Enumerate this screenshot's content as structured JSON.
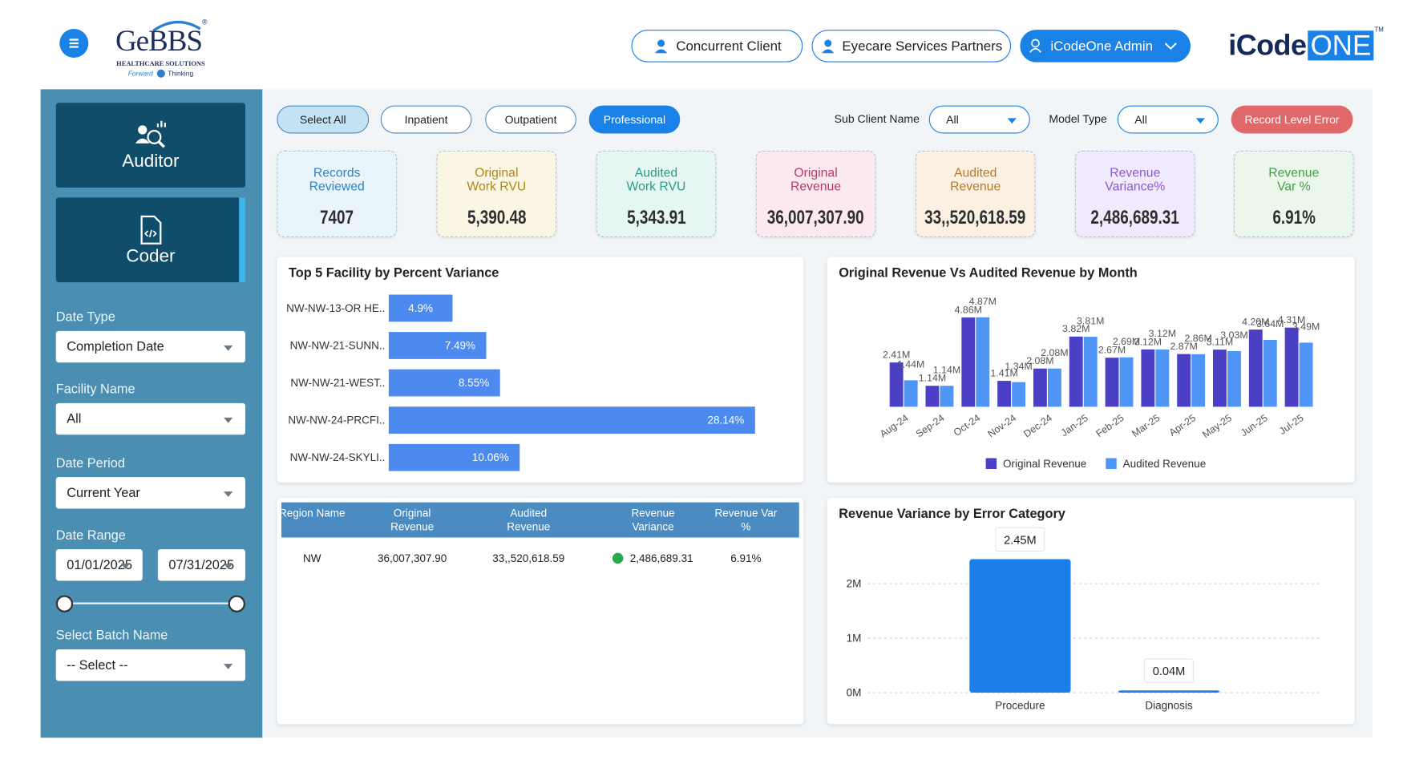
{
  "header": {
    "logo": {
      "name": "GeBBS",
      "mark": "®",
      "tagline": "HEALTHCARE SOLUTIONS",
      "motto_1": "Forward",
      "motto_2": "Thinking"
    },
    "buttons": [
      "Concurrent Client",
      "Eyecare Services Partners",
      "iCodeOne Admin"
    ],
    "brand": {
      "part_1": "iCode",
      "part_2": "ONE",
      "mark": "TM"
    }
  },
  "sidebar": {
    "roles": [
      "Auditor",
      "Coder"
    ],
    "filters": [
      {
        "label": "Date Type",
        "value": "Completion Date"
      },
      {
        "label": "Facility Name",
        "value": "All"
      },
      {
        "label": "Date Period",
        "value": "Current Year"
      }
    ],
    "date_range": {
      "label": "Date Range",
      "start": "01/01/2025",
      "end": "07/31/2025"
    },
    "batch": {
      "label": "Select Batch Name",
      "value": "-- Select --"
    }
  },
  "toolbar": {
    "tabs": [
      "Select All",
      "Inpatient",
      "Outpatient",
      "Professional"
    ],
    "sub_client": {
      "label": "Sub Client Name",
      "value": "All"
    },
    "model_type": {
      "label": "Model Type",
      "value": "All"
    },
    "action": "Record Level Error"
  },
  "kpis": [
    {
      "label": "Records Reviewed",
      "value": "7407"
    },
    {
      "label": "Original Work RVU",
      "value": "5,390.48"
    },
    {
      "label": "Audited Work RVU",
      "value": "5,343.91"
    },
    {
      "label": "Original Revenue",
      "value": "36,007,307.90"
    },
    {
      "label": "Audited Revenue",
      "value": "33,,520,618.59"
    },
    {
      "label": "Revenue Variance%",
      "value": "2,486,689.31"
    },
    {
      "label": "Revenue Var %",
      "value": "6.91%"
    }
  ],
  "chart_data": [
    {
      "type": "bar",
      "orientation": "horizontal",
      "title": "Top 5 Facility by Percent Variance",
      "categories": [
        "NW-NW-13-OR HE..",
        "NW-NW-21-SUNN..",
        "NW-NW-21-WEST..",
        "NW-NW-24-PRCFI..",
        "NW-NW-24-SKYLI.."
      ],
      "values": [
        4.9,
        7.49,
        8.55,
        28.14,
        10.06
      ],
      "value_labels": [
        "4.9%",
        "7.49%",
        "8.55%",
        "28.14%",
        "10.06%"
      ],
      "color": "#4d8af0",
      "xlim": [
        0,
        30
      ]
    },
    {
      "type": "bar",
      "title": "Original Revenue Vs Audited Revenue by Month",
      "categories": [
        "Aug-24",
        "Sep-24",
        "Oct-24",
        "Nov-24",
        "Dec-24",
        "Jan-25",
        "Feb-25",
        "Mar-25",
        "Apr-25",
        "May-25",
        "Jun-25",
        "Jul-25"
      ],
      "series": [
        {
          "name": "Original Revenue",
          "color": "#4b3fc6",
          "values": [
            2.41,
            1.14,
            4.86,
            1.41,
            2.08,
            3.82,
            2.67,
            3.12,
            2.87,
            3.11,
            4.2,
            4.31
          ],
          "value_labels": [
            "2.41M",
            "1.14M",
            "4.86M",
            "1.41M",
            "2.08M",
            "3.82M",
            "2.67M",
            "3.12M",
            "2.87M",
            "3.11M",
            "4.20M",
            "4.31M"
          ]
        },
        {
          "name": "Audited Revenue",
          "color": "#4f95f5",
          "values": [
            1.44,
            1.14,
            4.87,
            1.34,
            2.08,
            3.81,
            2.69,
            3.12,
            2.86,
            3.03,
            3.64,
            3.49
          ],
          "value_labels": [
            "1.44M",
            "1.14M",
            "4.87M",
            "1.34M",
            "2.08M",
            "3.81M",
            "2.69M",
            "3.12M",
            "2.86M",
            "3.03M",
            "3.64M",
            "3.49M"
          ]
        }
      ],
      "ylim": [
        0,
        5.5
      ],
      "legend": "bottom"
    },
    {
      "type": "bar",
      "title": "Revenue Variance by Error Category",
      "categories": [
        "Procedure",
        "Diagnosis"
      ],
      "values": [
        2.45,
        0.04
      ],
      "value_labels": [
        "2.45M",
        "0.04M"
      ],
      "color": "#1a7fe8",
      "ylim": [
        0,
        2.5
      ],
      "yticks": [
        {
          "value": 0,
          "label": "0M"
        },
        {
          "value": 1,
          "label": "1M"
        },
        {
          "value": 2,
          "label": "2M"
        }
      ],
      "grid": true
    }
  ],
  "table": {
    "columns": [
      "Region Name",
      "Original Revenue",
      "Audited Revenue",
      "Revenue Variance",
      "Revenue Var %"
    ],
    "rows": [
      [
        "NW",
        "36,007,307.90",
        "33,,520,618.59",
        "2,486,689.31",
        "6.91%"
      ]
    ]
  }
}
